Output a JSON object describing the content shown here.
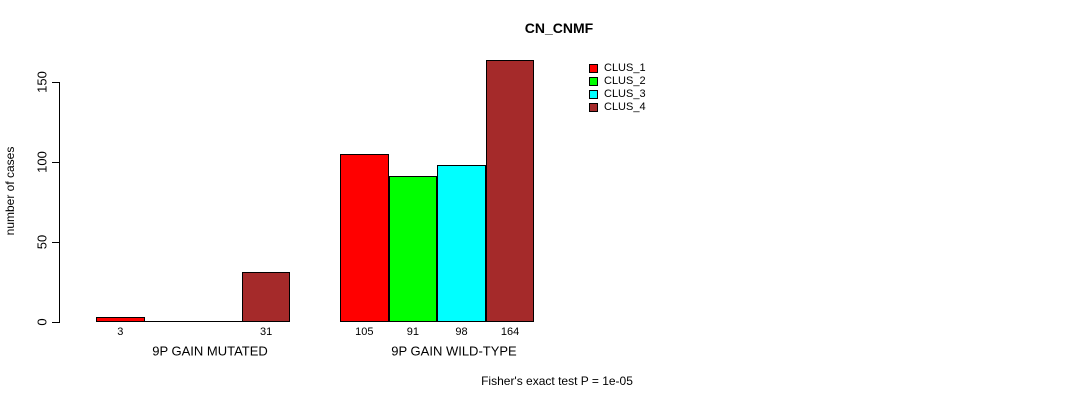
{
  "chart_data": {
    "type": "bar",
    "title": "CN_CNMF",
    "ylabel": "number of cases",
    "xlabel": "",
    "ylim": [
      0,
      164
    ],
    "yticks": [
      0,
      50,
      100,
      150
    ],
    "grid": false,
    "legend_position": "top-right",
    "categories": [
      "9P GAIN MUTATED",
      "9P GAIN WILD-TYPE"
    ],
    "series": [
      {
        "name": "CLUS_1",
        "color": "#ff0000",
        "values": [
          3,
          105
        ]
      },
      {
        "name": "CLUS_2",
        "color": "#00ff00",
        "values": [
          0,
          91
        ]
      },
      {
        "name": "CLUS_3",
        "color": "#00ffff",
        "values": [
          0,
          98
        ]
      },
      {
        "name": "CLUS_4",
        "color": "#a52a2a",
        "values": [
          31,
          164
        ]
      }
    ],
    "bar_labels": [
      [
        "3",
        "",
        "",
        "31"
      ],
      [
        "105",
        "91",
        "98",
        "164"
      ]
    ],
    "footnote": "Fisher's exact test P = 1e-05"
  },
  "colors": {
    "background": "#ffffff",
    "axis": "#000000",
    "text": "#000000",
    "bar_border": "#000000"
  }
}
